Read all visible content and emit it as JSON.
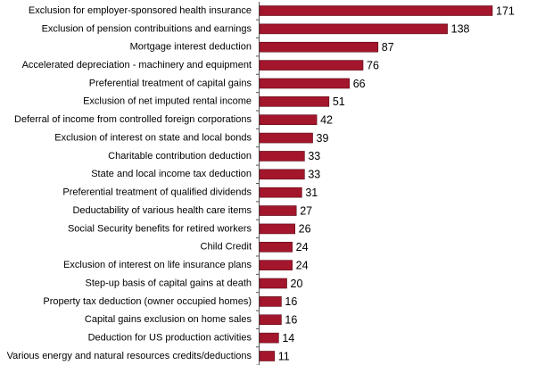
{
  "chart_data": {
    "type": "bar",
    "orientation": "horizontal",
    "color": "#a3162c",
    "categories": [
      "Exclusion for employer-sponsored health insurance",
      "Exclusion of pension contribuitions and earnings",
      "Mortgage interest deduction",
      "Accelerated depreciation - machinery and equipment",
      "Preferential treatment of capital gains",
      "Exclusion of net imputed rental income",
      "Deferral of income from controlled foreign corporations",
      "Exclusion of interest on state and local bonds",
      "Charitable contribution deduction",
      "State and local income tax deduction",
      "Preferential treatment of qualified dividends",
      "Deductability of various health care items",
      "Social Security benefits for retired workers",
      "Child Credit",
      "Exclusion of interest on life insurance plans",
      "Step-up basis of capital gains at death",
      "Property tax deduction (owner occupied homes)",
      "Capital gains exclusion on home sales",
      "Deduction for US production activities",
      "Various energy and natural resources credits/deductions"
    ],
    "values": [
      171,
      138,
      87,
      76,
      66,
      51,
      42,
      39,
      33,
      33,
      31,
      27,
      26,
      24,
      24,
      20,
      16,
      16,
      14,
      11
    ]
  }
}
